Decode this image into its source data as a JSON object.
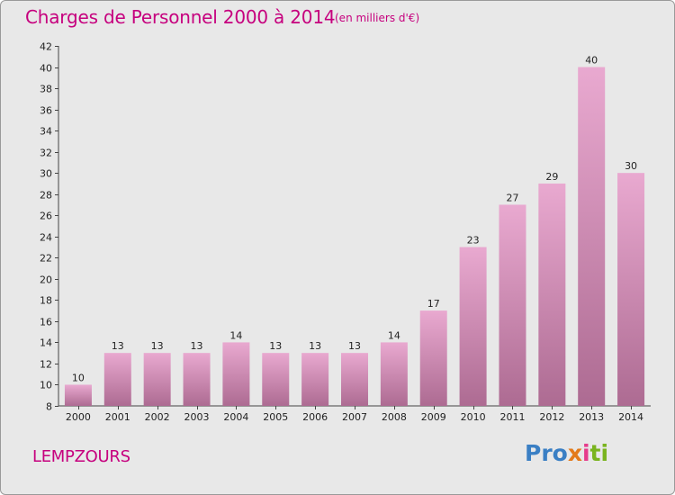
{
  "header": {
    "title": "Charges de Personnel 2000 à 2014",
    "subtitle": "(en milliers d'€)"
  },
  "commune": "LEMPZOURS",
  "logo": {
    "text": "Proxiti",
    "parts": [
      "Pro",
      "x",
      "i",
      "ti"
    ]
  },
  "colors": {
    "accent": "#c6007e",
    "bar_top": "#e9a9d0",
    "bar_bottom": "#ad6b92",
    "background": "#e8e8e8"
  },
  "chart_data": {
    "type": "bar",
    "title": "Charges de Personnel 2000 à 2014",
    "subtitle": "(en milliers d'€)",
    "categories": [
      "2000",
      "2001",
      "2002",
      "2003",
      "2004",
      "2005",
      "2006",
      "2007",
      "2008",
      "2009",
      "2010",
      "2011",
      "2012",
      "2013",
      "2014"
    ],
    "values": [
      10,
      13,
      13,
      13,
      14,
      13,
      13,
      13,
      14,
      17,
      23,
      27,
      29,
      40,
      30
    ],
    "ylim": [
      8,
      42
    ],
    "yticks": [
      8,
      10,
      12,
      14,
      16,
      18,
      20,
      22,
      24,
      26,
      28,
      30,
      32,
      34,
      36,
      38,
      40,
      42
    ],
    "xlabel": "",
    "ylabel": "",
    "grid": false,
    "legend": "none"
  }
}
